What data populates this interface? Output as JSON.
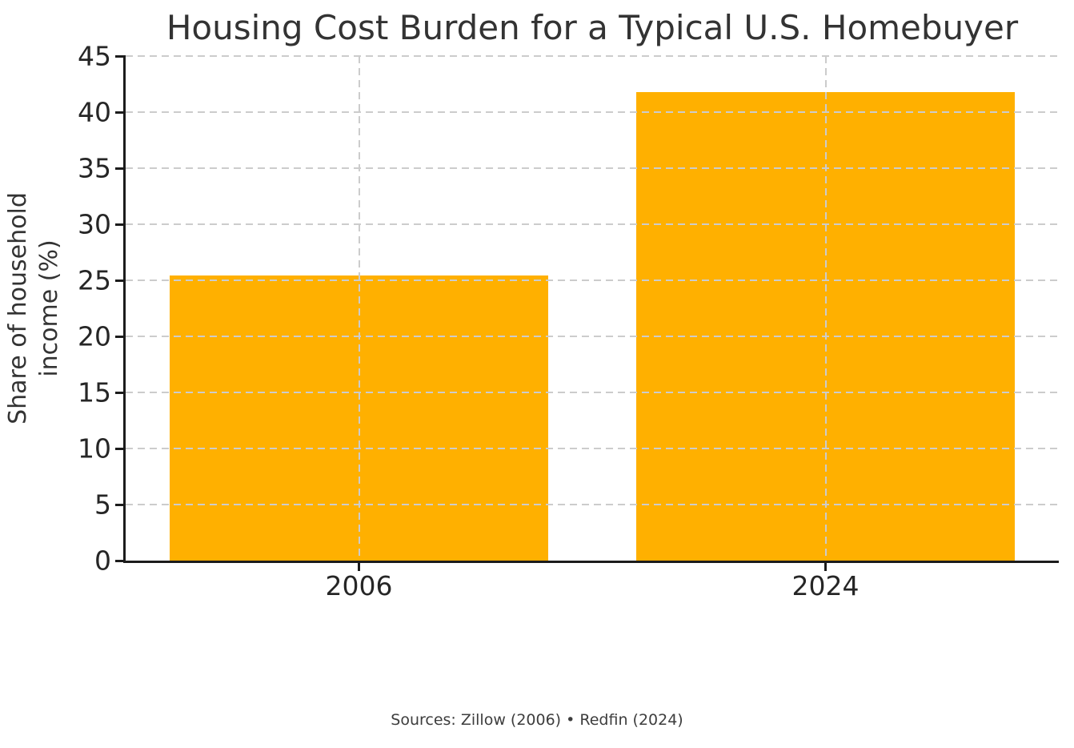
{
  "chart_data": {
    "type": "bar",
    "title": "Housing Cost Burden for a Typical U.S. Homebuyer",
    "categories": [
      "2006",
      "2024"
    ],
    "values": [
      25.4,
      41.8
    ],
    "xlabel": "",
    "ylabel": "Share of household\nincome (%)",
    "ylim": [
      0,
      45
    ],
    "ytick_step": 5,
    "grid": true,
    "legend": "none",
    "bar_color": "#FFB000",
    "grid_color": "#cccccc",
    "text_color": "#333333",
    "source_note": "Sources: Zillow (2006) • Redfin (2024)"
  }
}
